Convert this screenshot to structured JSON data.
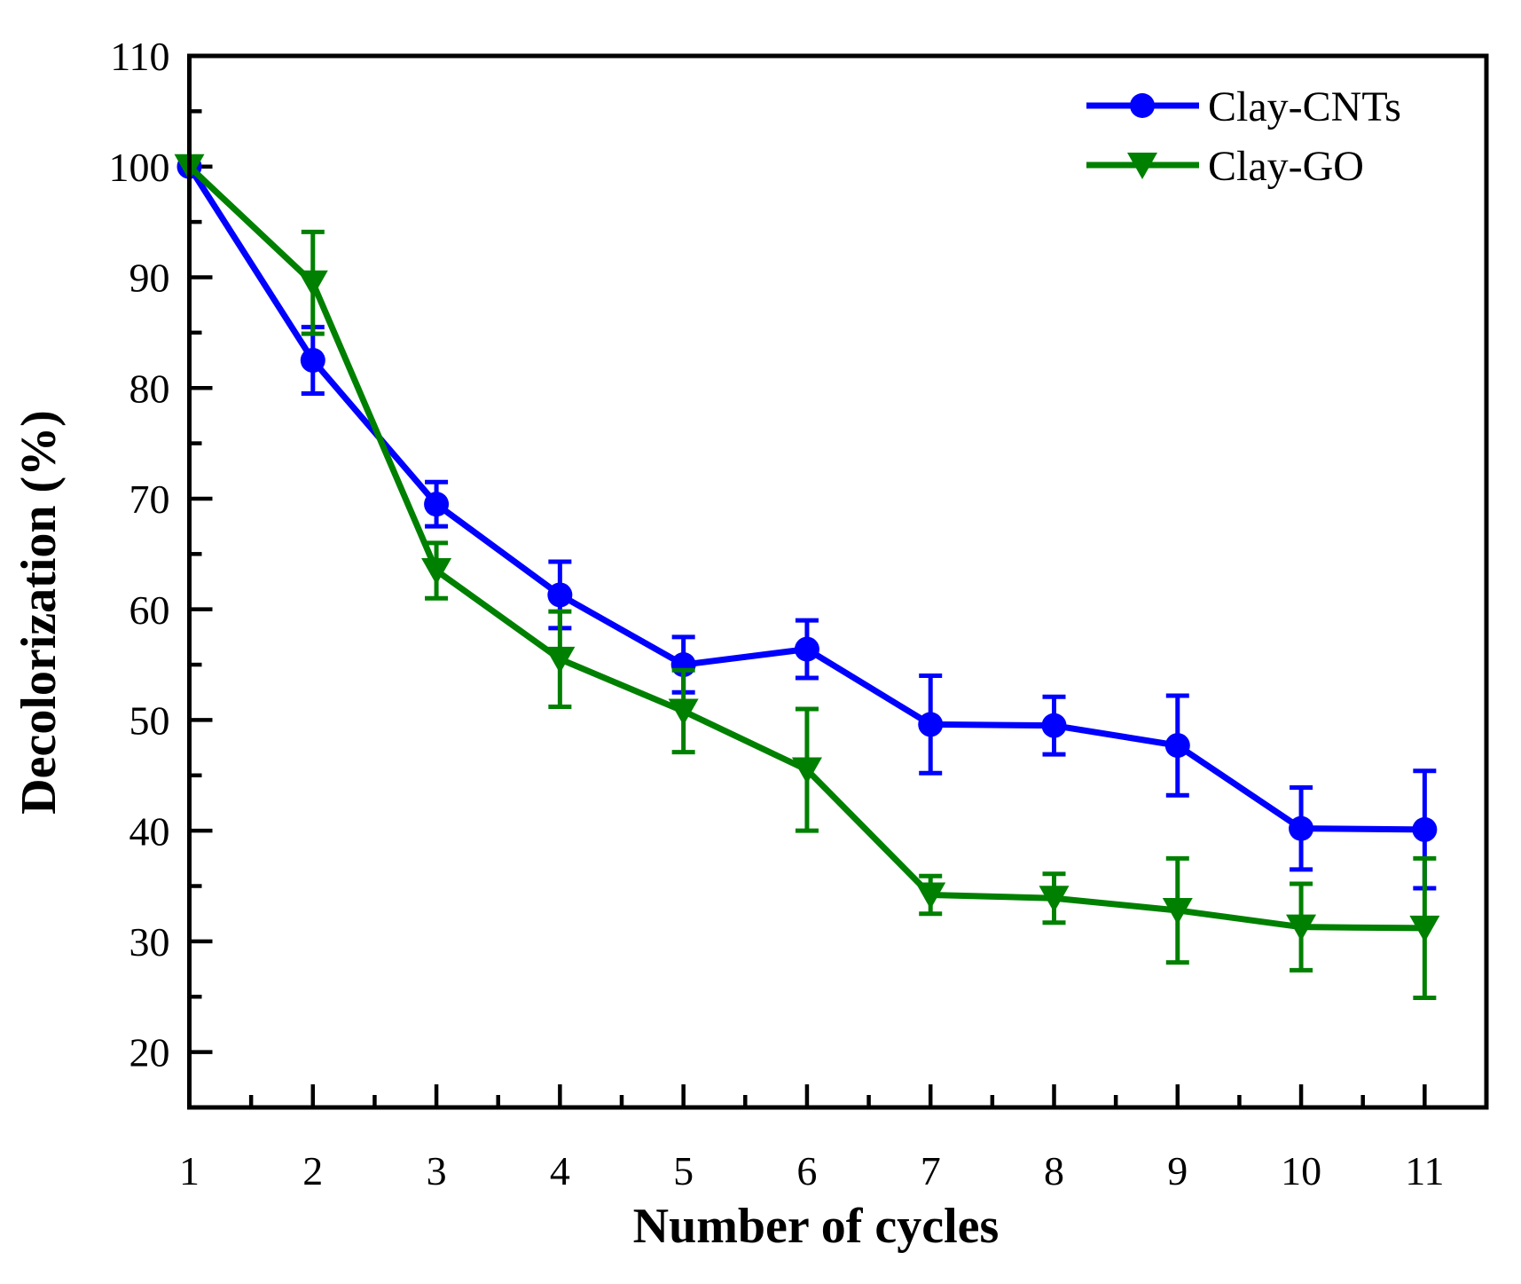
{
  "figure": {
    "background": "#ffffff",
    "frame_color": "#000000"
  },
  "chart_data": {
    "type": "line",
    "title": "",
    "xlabel": "Number of cycles",
    "ylabel": "Decolorization (%)",
    "xlim": [
      1,
      11.5
    ],
    "ylim": [
      15,
      110
    ],
    "grid": false,
    "legend_position": "top-right",
    "x": [
      1,
      2,
      3,
      4,
      5,
      6,
      7,
      8,
      9,
      10,
      11
    ],
    "x_tick_labels": [
      "1",
      "2",
      "3",
      "4",
      "5",
      "6",
      "7",
      "8",
      "9",
      "10",
      "11"
    ],
    "x_minor_ticks": [
      1.5,
      2.5,
      3.5,
      4.5,
      5.5,
      6.5,
      7.5,
      8.5,
      9.5,
      10.5
    ],
    "y_major_ticks": [
      20,
      30,
      40,
      50,
      60,
      70,
      80,
      90,
      100,
      110
    ],
    "y_tick_labels": [
      "20",
      "30",
      "40",
      "50",
      "60",
      "70",
      "80",
      "90",
      "100",
      "110"
    ],
    "y_minor_ticks": [
      25,
      35,
      45,
      55,
      65,
      75,
      85,
      95,
      105
    ],
    "series": [
      {
        "name": "Clay-CNTs",
        "color": "#0000ff",
        "marker": "circle",
        "values": [
          100,
          82.5,
          69.5,
          61.3,
          55.0,
          56.4,
          49.6,
          49.5,
          47.7,
          40.2,
          40.1
        ],
        "errors": [
          0,
          3.0,
          2.0,
          3.0,
          2.5,
          2.6,
          4.4,
          2.6,
          4.5,
          3.7,
          5.3
        ]
      },
      {
        "name": "Clay-GO",
        "color": "#008000",
        "marker": "triangle-down",
        "values": [
          100,
          89.5,
          63.5,
          55.5,
          50.8,
          45.5,
          34.2,
          33.9,
          32.8,
          31.3,
          31.2
        ],
        "errors": [
          0,
          4.6,
          2.5,
          4.3,
          3.7,
          5.5,
          1.7,
          2.2,
          4.7,
          3.9,
          6.3
        ]
      }
    ]
  }
}
